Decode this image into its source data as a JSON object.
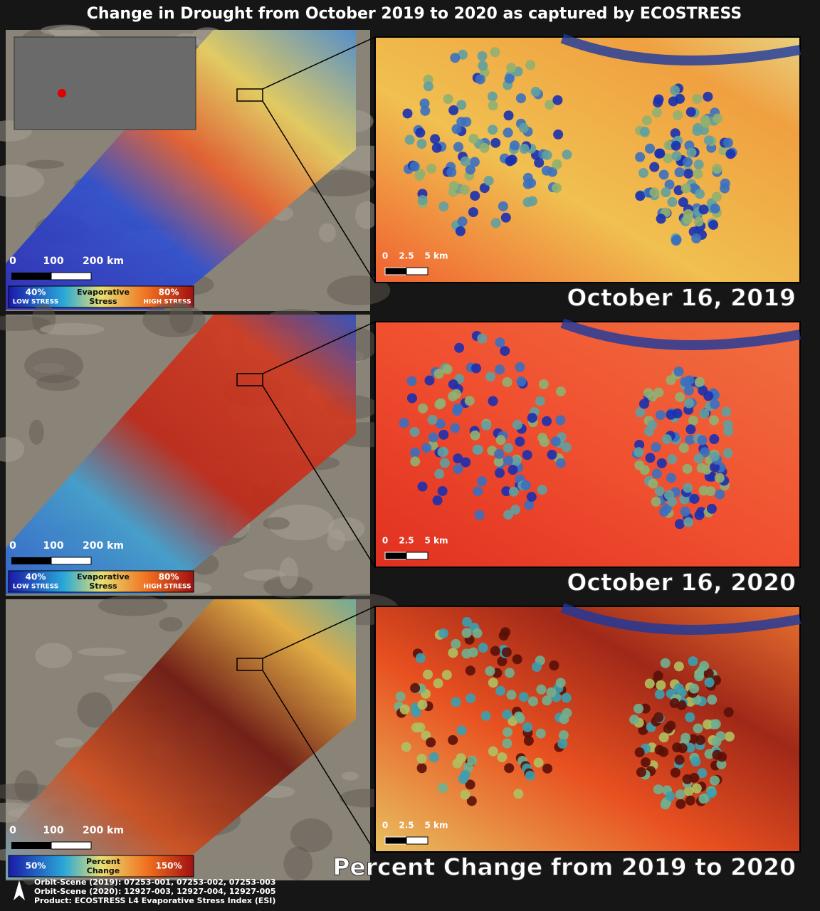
{
  "title": "Change in Drought from October 2019 to 2020 as captured by ECOSTRESS",
  "panels": [
    {
      "date": "October 16, 2019",
      "map_scale": [
        "0",
        "100",
        "200 km"
      ],
      "inset_scale": [
        "0",
        "2.5",
        "5 km"
      ],
      "legend": {
        "low": "40%",
        "low_label": "LOW STRESS",
        "center": [
          "Evaporative",
          "Stress"
        ],
        "high": "80%",
        "high_label": "HIGH STRESS"
      }
    },
    {
      "date": "October 16, 2020",
      "map_scale": [
        "0",
        "100",
        "200 km"
      ],
      "inset_scale": [
        "0",
        "2.5",
        "5 km"
      ],
      "legend": {
        "low": "40%",
        "low_label": "LOW STRESS",
        "center": [
          "Evaporative",
          "Stress"
        ],
        "high": "80%",
        "high_label": "HIGH STRESS"
      }
    },
    {
      "date": "Percent Change from 2019 to 2020",
      "map_scale": [
        "0",
        "100",
        "200 km"
      ],
      "inset_scale": [
        "0",
        "2.5",
        "5 km"
      ],
      "legend": {
        "low": "50%",
        "center": [
          "Percent",
          "Change"
        ],
        "high": "150%"
      }
    }
  ],
  "footer": [
    "Orbit-Scene (2019): 07253-001, 07253-002, 07253-003",
    "Orbit-Scene (2020): 12927-003, 12927-004, 12927-005",
    "Product: ECOSTRESS L4 Evaporative Stress Index (ESI)"
  ]
}
